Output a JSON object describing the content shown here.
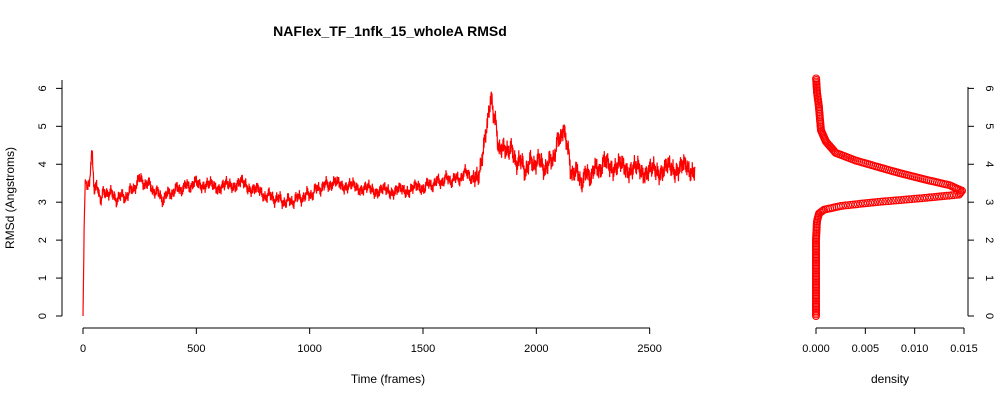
{
  "chart_data": [
    {
      "type": "line",
      "title": "NAFlex_TF_1nfk_15_wholeA RMSd",
      "xlabel": "Time (frames)",
      "ylabel": "RMSd (Angstroms)",
      "xlim": [
        0,
        2700
      ],
      "ylim": [
        0,
        6.3
      ],
      "xticks": [
        "0",
        "500",
        "1000",
        "1500",
        "2000",
        "2500"
      ],
      "yticks": [
        "0",
        "1",
        "2",
        "3",
        "4",
        "5",
        "6"
      ],
      "color": "#ff0000",
      "series": [
        {
          "x": [
            0,
            5,
            10,
            20,
            30,
            40,
            50,
            60,
            80,
            100,
            150,
            200,
            250,
            300,
            350,
            400,
            450,
            500,
            600,
            700,
            800,
            850,
            900,
            950,
            1000,
            1050,
            1100,
            1200,
            1300,
            1400,
            1500,
            1550,
            1600,
            1650,
            1700,
            1720,
            1750,
            1790,
            1800,
            1810,
            1830,
            1850,
            1880,
            1900,
            1950,
            2000,
            2050,
            2100,
            2120,
            2130,
            2150,
            2200,
            2250,
            2300,
            2400,
            2500,
            2600,
            2700
          ],
          "y": [
            0.0,
            2.3,
            3.6,
            3.4,
            3.7,
            4.4,
            3.2,
            3.4,
            3.1,
            3.3,
            3.1,
            3.2,
            3.6,
            3.4,
            3.1,
            3.3,
            3.4,
            3.5,
            3.4,
            3.5,
            3.2,
            3.1,
            3.0,
            3.1,
            3.2,
            3.4,
            3.5,
            3.4,
            3.3,
            3.3,
            3.4,
            3.5,
            3.6,
            3.6,
            3.8,
            3.5,
            3.9,
            5.2,
            5.8,
            5.4,
            4.6,
            4.3,
            4.5,
            4.2,
            3.9,
            4.1,
            3.9,
            4.6,
            5.0,
            4.7,
            3.9,
            3.6,
            3.8,
            4.0,
            3.9,
            3.8,
            3.9,
            3.9
          ]
        }
      ]
    },
    {
      "type": "scatter",
      "xlabel": "density",
      "xlim": [
        0,
        0.015
      ],
      "ylim": [
        0,
        6.3
      ],
      "xticks": [
        "0.000",
        "0.005",
        "0.010",
        "0.015"
      ],
      "yticks": [
        "0",
        "1",
        "2",
        "3",
        "4",
        "5",
        "6"
      ],
      "color": "#ff0000",
      "series": [
        {
          "x": [
            0.0,
            0.0,
            0.0,
            0.0,
            0.0,
            0.0001,
            0.0003,
            0.0008,
            0.0025,
            0.006,
            0.0105,
            0.0145,
            0.0148,
            0.0135,
            0.011,
            0.008,
            0.006,
            0.004,
            0.002,
            0.001,
            0.0005,
            0.0004,
            0.0003,
            0.0001,
            0.0
          ],
          "y": [
            0.0,
            0.5,
            1.0,
            1.5,
            2.0,
            2.5,
            2.7,
            2.8,
            2.9,
            3.0,
            3.1,
            3.2,
            3.3,
            3.45,
            3.6,
            3.8,
            3.95,
            4.1,
            4.3,
            4.6,
            4.9,
            5.2,
            5.5,
            5.9,
            6.3
          ]
        }
      ]
    }
  ]
}
